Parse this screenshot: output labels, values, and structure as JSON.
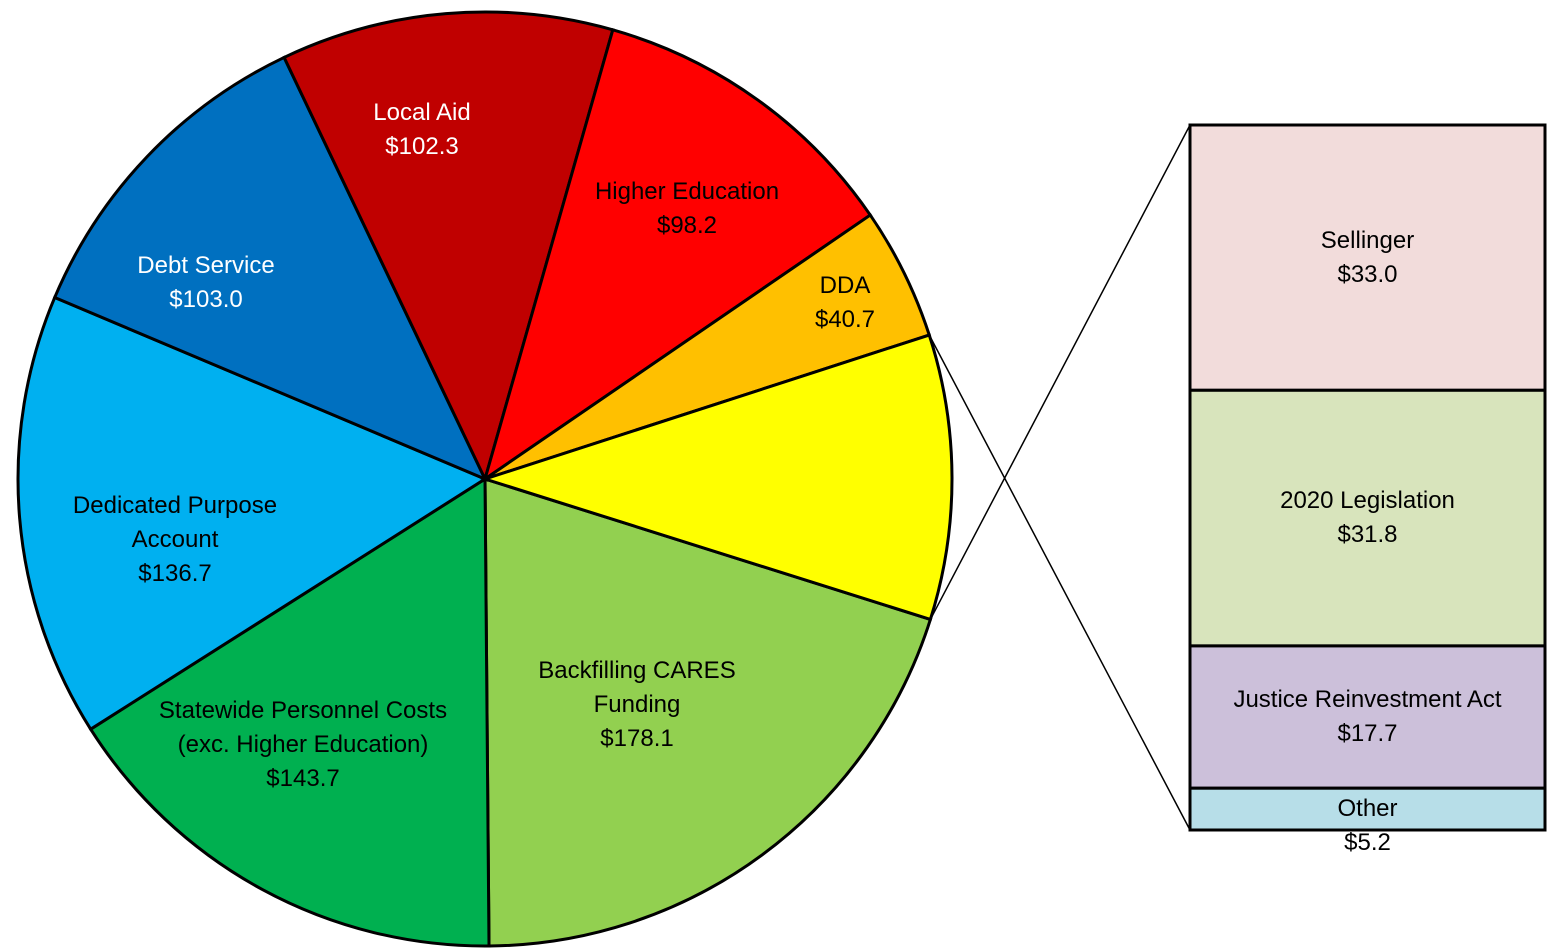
{
  "chart_data": [
    {
      "type": "pie",
      "categories": [
        "Backfilling CARES Funding",
        "Statewide Personnel Costs (exc. Higher Education)",
        "Dedicated Purpose Account",
        "Debt Service",
        "Local Aid",
        "Higher Education",
        "DDA",
        null
      ],
      "values": [
        178.1,
        143.7,
        136.7,
        103.0,
        102.3,
        98.2,
        40.7,
        87.7
      ],
      "value_labels": [
        "$178.1",
        "$143.7",
        "$136.7",
        "$103.0",
        "$102.3",
        "$98.2",
        "$40.7",
        null
      ],
      "colors": [
        "#92d050",
        "#00b050",
        "#00b0f0",
        "#0070c0",
        "#c00000",
        "#ff0000",
        "#ffc000",
        "#ffff00"
      ]
    },
    {
      "type": "stacked_bar",
      "categories": [
        "Sellinger",
        "2020 Legislation",
        "Justice Reinvestment Act",
        "Other"
      ],
      "values": [
        33.0,
        31.8,
        17.7,
        5.2
      ],
      "value_labels": [
        "$33.0",
        "$31.8",
        "$17.7",
        "$5.2"
      ],
      "colors": [
        "#f2dcdb",
        "#d8e4bc",
        "#ccc0da",
        "#b7dee8"
      ]
    }
  ]
}
